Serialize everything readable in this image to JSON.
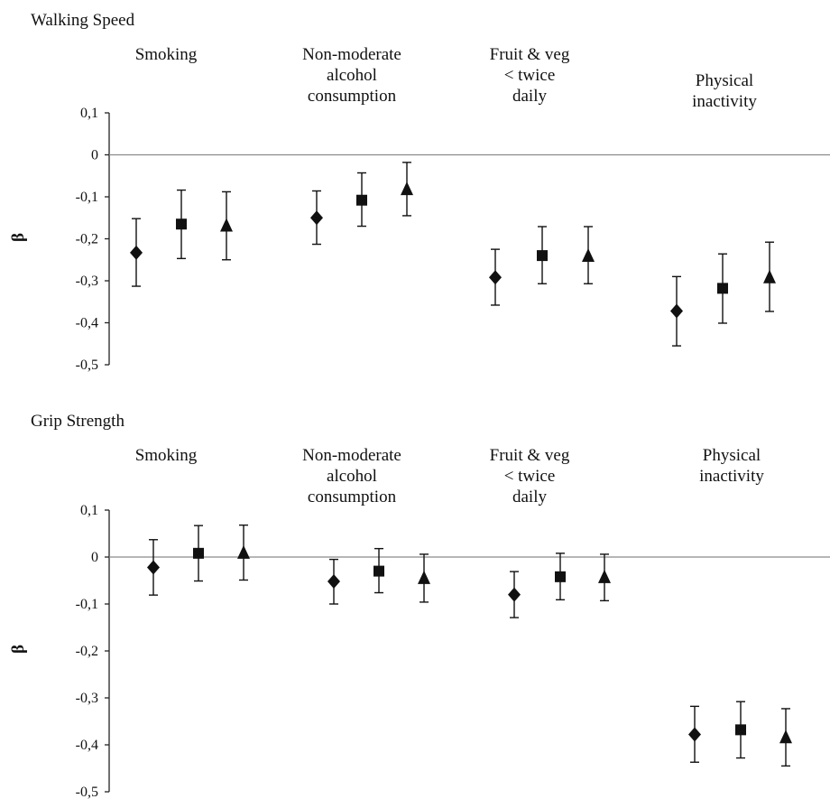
{
  "chart_data": [
    {
      "type": "scatter",
      "title": "Walking Speed",
      "ylabel": "β",
      "ylim": [
        -0.5,
        0.1
      ],
      "yticks": [
        "0,1",
        "0",
        "-0,1",
        "-0,2",
        "-0,3",
        "-0,4",
        "-0,5"
      ],
      "categories": [
        "Smoking",
        "Non-moderate alcohol consumption",
        "Fruit & veg < twice daily",
        "Physical inactivity"
      ],
      "category_lines": [
        [
          "Smoking"
        ],
        [
          "Non-moderate",
          "alcohol",
          "consumption"
        ],
        [
          "Fruit & veg",
          "< twice",
          "daily"
        ],
        [
          "Physical",
          "inactivity"
        ]
      ],
      "grid": false,
      "series": [
        {
          "marker": "diamond",
          "points": [
            {
              "y": -0.233,
              "lo": -0.313,
              "hi": -0.152
            },
            {
              "y": -0.15,
              "lo": -0.213,
              "hi": -0.086
            },
            {
              "y": -0.292,
              "lo": -0.358,
              "hi": -0.225
            },
            {
              "y": -0.372,
              "lo": -0.455,
              "hi": -0.29
            }
          ]
        },
        {
          "marker": "square",
          "points": [
            {
              "y": -0.165,
              "lo": -0.247,
              "hi": -0.084
            },
            {
              "y": -0.108,
              "lo": -0.17,
              "hi": -0.043
            },
            {
              "y": -0.24,
              "lo": -0.307,
              "hi": -0.171
            },
            {
              "y": -0.318,
              "lo": -0.401,
              "hi": -0.236
            }
          ]
        },
        {
          "marker": "triangle",
          "points": [
            {
              "y": -0.17,
              "lo": -0.25,
              "hi": -0.088
            },
            {
              "y": -0.083,
              "lo": -0.145,
              "hi": -0.018
            },
            {
              "y": -0.242,
              "lo": -0.307,
              "hi": -0.171
            },
            {
              "y": -0.293,
              "lo": -0.373,
              "hi": -0.208
            }
          ]
        }
      ]
    },
    {
      "type": "scatter",
      "title": "Grip Strength",
      "ylabel": "β",
      "ylim": [
        -0.5,
        0.1
      ],
      "yticks": [
        "0,1",
        "0",
        "-0,1",
        "-0,2",
        "-0,3",
        "-0,4",
        "-0,5"
      ],
      "categories": [
        "Smoking",
        "Non-moderate alcohol consumption",
        "Fruit & veg < twice daily",
        "Physical inactivity"
      ],
      "category_lines": [
        [
          "Smoking"
        ],
        [
          "Non-moderate",
          "alcohol",
          "consumption"
        ],
        [
          "Fruit & veg",
          "< twice",
          "daily"
        ],
        [
          "Physical",
          "inactivity"
        ]
      ],
      "grid": false,
      "series": [
        {
          "marker": "diamond",
          "points": [
            {
              "y": -0.022,
              "lo": -0.081,
              "hi": 0.037
            },
            {
              "y": -0.052,
              "lo": -0.1,
              "hi": -0.005
            },
            {
              "y": -0.08,
              "lo": -0.129,
              "hi": -0.031
            },
            {
              "y": -0.378,
              "lo": -0.437,
              "hi": -0.318
            }
          ]
        },
        {
          "marker": "square",
          "points": [
            {
              "y": 0.008,
              "lo": -0.051,
              "hi": 0.067
            },
            {
              "y": -0.03,
              "lo": -0.076,
              "hi": 0.018
            },
            {
              "y": -0.042,
              "lo": -0.091,
              "hi": 0.008
            },
            {
              "y": -0.368,
              "lo": -0.428,
              "hi": -0.308
            }
          ]
        },
        {
          "marker": "triangle",
          "points": [
            {
              "y": 0.008,
              "lo": -0.049,
              "hi": 0.068
            },
            {
              "y": -0.046,
              "lo": -0.096,
              "hi": 0.006
            },
            {
              "y": -0.044,
              "lo": -0.093,
              "hi": 0.006
            },
            {
              "y": -0.385,
              "lo": -0.445,
              "hi": -0.323
            }
          ]
        }
      ]
    }
  ]
}
